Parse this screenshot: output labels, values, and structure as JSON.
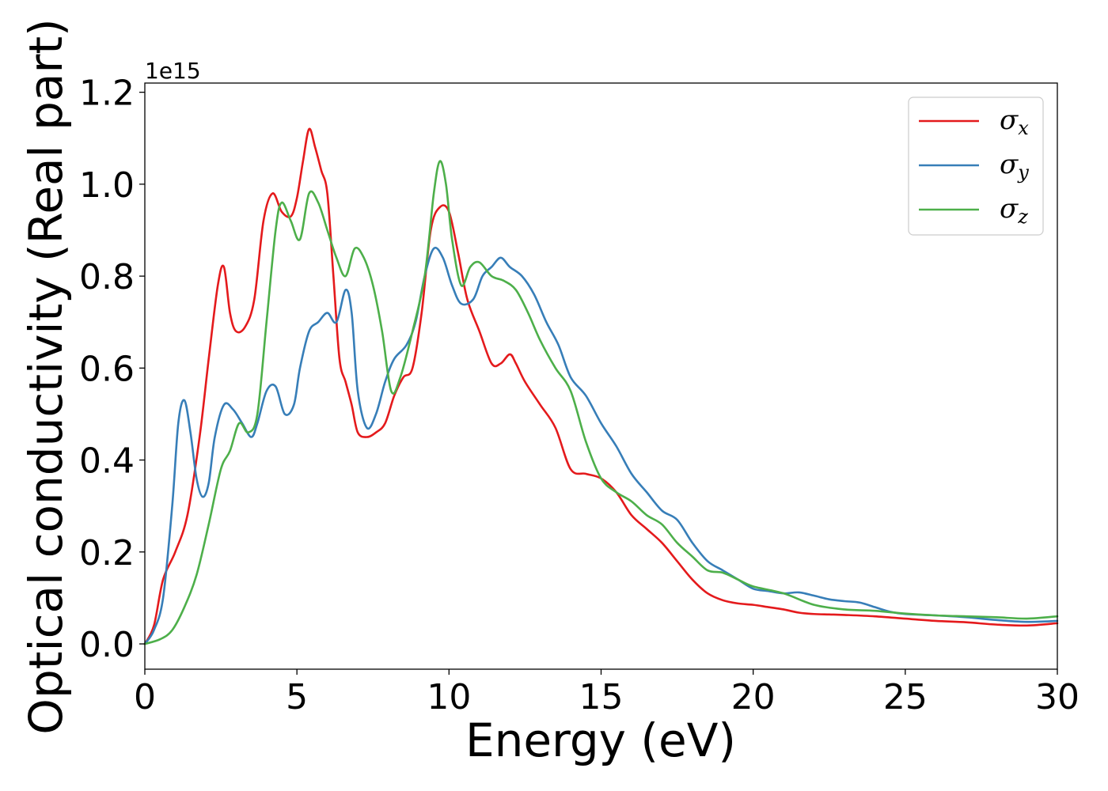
{
  "chart_data": {
    "type": "line",
    "title": "",
    "xlabel": "Energy (eV)",
    "ylabel": "Optical conductivity (Real part)",
    "y_offset_label": "1e15",
    "xlim": [
      0,
      30
    ],
    "ylim": [
      -0.055,
      1.22
    ],
    "xticks": [
      0,
      5,
      10,
      15,
      20,
      25,
      30
    ],
    "xtick_labels": [
      "0",
      "5",
      "10",
      "15",
      "20",
      "25",
      "30"
    ],
    "yticks": [
      0.0,
      0.2,
      0.4,
      0.6,
      0.8,
      1.0,
      1.2
    ],
    "ytick_labels": [
      "0.0",
      "0.2",
      "0.4",
      "0.6",
      "0.8",
      "1.0",
      "1.2"
    ],
    "grid": false,
    "legend_position": "top-right",
    "series": [
      {
        "name": "σx",
        "symbol": "σ",
        "subscript": "x",
        "color": "#e41a1c",
        "x": [
          0,
          0.3,
          0.6,
          1.0,
          1.4,
          1.8,
          2.1,
          2.4,
          2.6,
          2.8,
          3.0,
          3.3,
          3.6,
          3.9,
          4.2,
          4.5,
          4.8,
          5.0,
          5.2,
          5.4,
          5.6,
          5.8,
          6.0,
          6.2,
          6.4,
          6.6,
          6.8,
          7.0,
          7.3,
          7.6,
          7.9,
          8.2,
          8.5,
          8.8,
          9.1,
          9.4,
          9.7,
          10.0,
          10.3,
          10.6,
          11.0,
          11.4,
          11.7,
          12.0,
          12.2,
          12.5,
          13.0,
          13.5,
          14.0,
          14.5,
          15.0,
          15.5,
          16.0,
          16.5,
          17.0,
          17.5,
          18.0,
          18.5,
          19.0,
          19.5,
          20.0,
          20.5,
          21.0,
          21.5,
          22.0,
          22.5,
          23.0,
          24.0,
          25.0,
          26.0,
          27.0,
          28.0,
          29.0,
          30.0
        ],
        "y": [
          0.0,
          0.04,
          0.14,
          0.2,
          0.28,
          0.45,
          0.62,
          0.78,
          0.82,
          0.72,
          0.68,
          0.69,
          0.75,
          0.92,
          0.98,
          0.94,
          0.93,
          0.97,
          1.05,
          1.12,
          1.08,
          1.03,
          0.98,
          0.8,
          0.62,
          0.57,
          0.52,
          0.46,
          0.45,
          0.46,
          0.48,
          0.54,
          0.58,
          0.6,
          0.72,
          0.9,
          0.95,
          0.94,
          0.85,
          0.75,
          0.68,
          0.61,
          0.61,
          0.63,
          0.61,
          0.57,
          0.52,
          0.47,
          0.38,
          0.37,
          0.36,
          0.33,
          0.28,
          0.25,
          0.22,
          0.18,
          0.14,
          0.11,
          0.095,
          0.088,
          0.085,
          0.08,
          0.075,
          0.068,
          0.065,
          0.064,
          0.063,
          0.06,
          0.055,
          0.05,
          0.047,
          0.042,
          0.04,
          0.045
        ]
      },
      {
        "name": "σy",
        "symbol": "σ",
        "subscript": "y",
        "color": "#377eb8",
        "x": [
          0,
          0.3,
          0.6,
          0.9,
          1.1,
          1.3,
          1.5,
          1.7,
          1.9,
          2.1,
          2.3,
          2.6,
          2.9,
          3.2,
          3.5,
          3.7,
          4.0,
          4.3,
          4.6,
          4.9,
          5.1,
          5.4,
          5.7,
          6.0,
          6.3,
          6.6,
          6.8,
          7.0,
          7.3,
          7.6,
          7.9,
          8.2,
          8.6,
          8.9,
          9.2,
          9.5,
          9.8,
          10.1,
          10.4,
          10.8,
          11.1,
          11.4,
          11.7,
          12.0,
          12.4,
          12.8,
          13.2,
          13.6,
          14.0,
          14.5,
          15.0,
          15.5,
          16.0,
          16.5,
          17.0,
          17.5,
          18.0,
          18.5,
          19.0,
          19.5,
          20.0,
          20.5,
          21.0,
          21.5,
          22.0,
          22.5,
          23.0,
          23.5,
          24.0,
          24.5,
          25.0,
          26.0,
          27.0,
          28.0,
          29.0,
          30.0
        ],
        "y": [
          0.0,
          0.03,
          0.1,
          0.3,
          0.48,
          0.53,
          0.46,
          0.36,
          0.32,
          0.35,
          0.45,
          0.52,
          0.51,
          0.48,
          0.45,
          0.48,
          0.55,
          0.56,
          0.5,
          0.52,
          0.6,
          0.68,
          0.7,
          0.72,
          0.7,
          0.77,
          0.72,
          0.55,
          0.47,
          0.5,
          0.57,
          0.62,
          0.65,
          0.7,
          0.8,
          0.86,
          0.84,
          0.78,
          0.74,
          0.75,
          0.8,
          0.82,
          0.84,
          0.82,
          0.8,
          0.76,
          0.7,
          0.65,
          0.58,
          0.54,
          0.48,
          0.43,
          0.37,
          0.33,
          0.29,
          0.27,
          0.22,
          0.18,
          0.16,
          0.14,
          0.12,
          0.115,
          0.11,
          0.112,
          0.105,
          0.097,
          0.093,
          0.09,
          0.08,
          0.07,
          0.065,
          0.062,
          0.058,
          0.052,
          0.048,
          0.05
        ]
      },
      {
        "name": "σz",
        "symbol": "σ",
        "subscript": "z",
        "color": "#4daf4a",
        "x": [
          0,
          0.5,
          0.9,
          1.3,
          1.7,
          2.1,
          2.5,
          2.8,
          3.1,
          3.4,
          3.7,
          4.0,
          4.3,
          4.5,
          4.8,
          5.1,
          5.4,
          5.7,
          6.0,
          6.3,
          6.6,
          6.9,
          7.2,
          7.5,
          7.8,
          8.1,
          8.4,
          8.8,
          9.2,
          9.5,
          9.7,
          9.9,
          10.1,
          10.4,
          10.7,
          11.0,
          11.4,
          11.8,
          12.2,
          12.6,
          13.0,
          13.5,
          14.0,
          14.5,
          15.0,
          15.5,
          16.0,
          16.5,
          17.0,
          17.5,
          18.0,
          18.5,
          19.0,
          19.5,
          20.0,
          21.0,
          22.0,
          23.0,
          24.0,
          25.0,
          26.0,
          27.0,
          28.0,
          29.0,
          30.0
        ],
        "y": [
          0.0,
          0.01,
          0.03,
          0.08,
          0.15,
          0.26,
          0.38,
          0.42,
          0.48,
          0.46,
          0.5,
          0.7,
          0.9,
          0.96,
          0.92,
          0.88,
          0.98,
          0.96,
          0.9,
          0.84,
          0.8,
          0.86,
          0.84,
          0.78,
          0.68,
          0.55,
          0.58,
          0.68,
          0.8,
          0.98,
          1.05,
          1.0,
          0.88,
          0.78,
          0.82,
          0.83,
          0.8,
          0.79,
          0.77,
          0.72,
          0.66,
          0.6,
          0.55,
          0.44,
          0.36,
          0.33,
          0.31,
          0.28,
          0.26,
          0.22,
          0.19,
          0.16,
          0.155,
          0.14,
          0.125,
          0.11,
          0.085,
          0.075,
          0.072,
          0.066,
          0.062,
          0.06,
          0.058,
          0.055,
          0.06
        ]
      }
    ]
  }
}
